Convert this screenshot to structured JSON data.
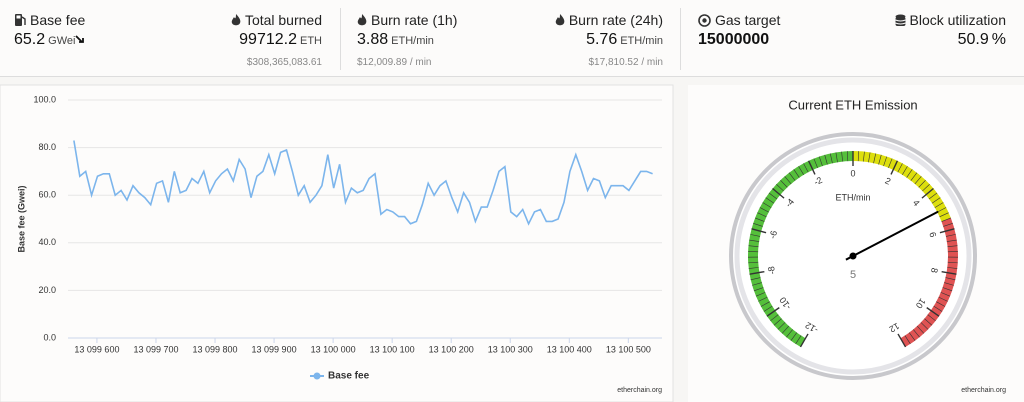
{
  "stats": [
    {
      "label": "Base fee",
      "value": "65.2",
      "unit": "GWei"
    },
    {
      "label": "Total burned",
      "value": "99712.2",
      "unit": "ETH",
      "sub": "$308,365,083.61"
    },
    {
      "label": "Burn rate (1h)",
      "value": "3.88",
      "unit": "ETH/min",
      "sub": "$12,009.89 / min"
    },
    {
      "label": "Burn rate (24h)",
      "value": "5.76",
      "unit": "ETH/min",
      "sub": "$17,810.52 / min"
    },
    {
      "label": "Gas target",
      "value": "15000000"
    },
    {
      "label": "Block utilization",
      "value": "50.9",
      "unit": "%"
    }
  ],
  "chart_data": [
    {
      "type": "line",
      "y_label": "Base fee (Gwei)",
      "credit": "etherchain.org",
      "legend": "bottom",
      "xlim": [
        13099551,
        13100557
      ],
      "ylim": [
        0,
        100
      ],
      "xticks": [
        {
          "value": 13099600,
          "label": "13 099 600"
        },
        {
          "value": 13099700,
          "label": "13 099 700"
        },
        {
          "value": 13099800,
          "label": "13 099 800"
        },
        {
          "value": 13099900,
          "label": "13 099 900"
        },
        {
          "value": 13100000,
          "label": "13 100 000"
        },
        {
          "value": 13100100,
          "label": "13 100 100"
        },
        {
          "value": 13100200,
          "label": "13 100 200"
        },
        {
          "value": 13100300,
          "label": "13 100 300"
        },
        {
          "value": 13100400,
          "label": "13 100 400"
        },
        {
          "value": 13100500,
          "label": "13 100 500"
        }
      ],
      "yticks": [
        {
          "value": 0,
          "label": "0.0"
        },
        {
          "value": 20,
          "label": "20.0"
        },
        {
          "value": 40,
          "label": "40.0"
        },
        {
          "value": 60,
          "label": "60.0"
        },
        {
          "value": 80,
          "label": "80.0"
        },
        {
          "value": 100,
          "label": "100.0"
        }
      ],
      "grid": true,
      "x": [
        13099561,
        13099571,
        13099581,
        13099591,
        13099601,
        13099611,
        13099621,
        13099631,
        13099641,
        13099651,
        13099661,
        13099671,
        13099681,
        13099691,
        13099701,
        13099711,
        13099721,
        13099731,
        13099741,
        13099751,
        13099761,
        13099771,
        13099781,
        13099791,
        13099801,
        13099811,
        13099821,
        13099831,
        13099841,
        13099851,
        13099861,
        13099871,
        13099881,
        13099891,
        13099901,
        13099911,
        13099921,
        13099931,
        13099941,
        13099951,
        13099961,
        13099971,
        13099981,
        13099991,
        13100001,
        13100011,
        13100021,
        13100031,
        13100041,
        13100051,
        13100061,
        13100071,
        13100081,
        13100091,
        13100101,
        13100111,
        13100121,
        13100131,
        13100141,
        13100151,
        13100161,
        13100171,
        13100181,
        13100191,
        13100201,
        13100211,
        13100221,
        13100231,
        13100241,
        13100251,
        13100261,
        13100271,
        13100281,
        13100291,
        13100301,
        13100311,
        13100321,
        13100331,
        13100341,
        13100351,
        13100361,
        13100371,
        13100381,
        13100391,
        13100401,
        13100411,
        13100421,
        13100431,
        13100441,
        13100451,
        13100461,
        13100471,
        13100481,
        13100491,
        13100501,
        13100511,
        13100521,
        13100531,
        13100541
      ],
      "series": [
        {
          "name": "Base fee",
          "color": "#7cb5ec",
          "values": [
            83,
            68,
            70,
            60,
            68,
            69,
            69,
            60,
            62,
            58,
            64,
            61,
            59,
            56,
            65,
            66,
            57,
            70,
            61,
            62,
            67,
            65,
            70,
            61,
            66,
            69,
            71,
            66,
            75,
            71,
            59,
            68,
            70,
            77,
            69,
            78,
            79,
            70,
            60,
            64,
            57,
            60,
            64,
            77,
            63,
            73,
            57,
            63,
            61,
            62,
            67,
            69,
            52,
            54,
            53,
            51,
            51,
            48,
            49,
            56,
            65,
            60,
            64,
            66,
            59,
            53,
            61,
            57,
            49,
            55,
            55,
            62,
            70,
            72,
            53,
            51,
            54,
            48,
            53,
            54,
            49,
            49,
            50,
            57,
            70,
            77,
            70,
            62,
            67,
            66,
            59,
            64,
            64,
            64,
            62,
            66,
            70,
            70,
            69
          ]
        }
      ]
    },
    {
      "type": "gauge",
      "title": "Current ETH Emission",
      "unit": "ETH/min",
      "credit": "etherchain.org",
      "value": 5,
      "ylim": [
        -12,
        12
      ],
      "yticks": [
        -12,
        -10,
        -8,
        -6,
        -4,
        -2,
        0,
        2,
        4,
        6,
        8,
        10,
        12
      ],
      "bands": [
        {
          "from": -12,
          "to": 0,
          "color": "#55bf3b"
        },
        {
          "from": 0,
          "to": 5.5,
          "color": "#dddf0d"
        },
        {
          "from": 5.5,
          "to": 12,
          "color": "#df5353"
        }
      ]
    }
  ]
}
